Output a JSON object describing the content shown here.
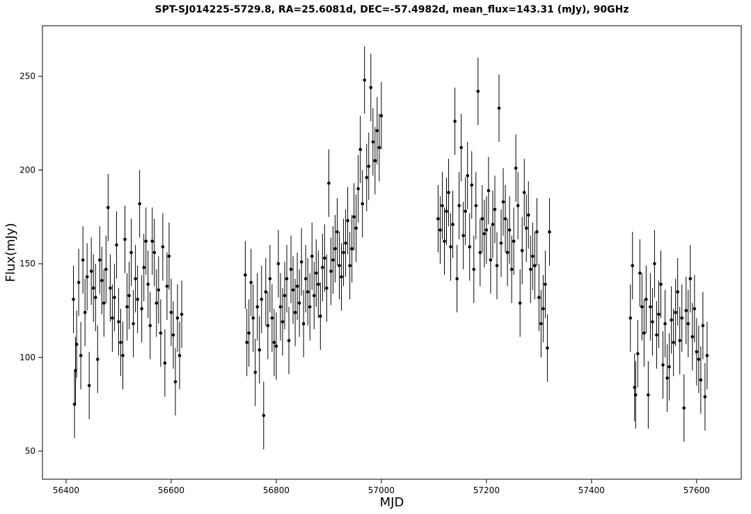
{
  "chart_data": {
    "type": "scatter",
    "title": "SPT-SJ014225-5729.8, RA=25.6081d, DEC=-57.4982d, mean_flux=143.31 (mJy), 90GHz",
    "xlabel": "MJD",
    "ylabel": "Flux(mJy)",
    "xlim": [
      56355,
      57685
    ],
    "ylim": [
      35,
      277
    ],
    "xticks": [
      56400,
      56600,
      56800,
      57000,
      57200,
      57400,
      57600
    ],
    "yticks": [
      50,
      100,
      150,
      200,
      250
    ],
    "xtick_labels": [
      "56400",
      "56600",
      "56800",
      "57000",
      "57200",
      "57400",
      "57600"
    ],
    "ytick_labels": [
      "50",
      "100",
      "150",
      "200",
      "250"
    ],
    "grid": false,
    "legend": "none",
    "error_bars": true,
    "series": [
      {
        "x": [
          56414,
          56416,
          56418,
          56420,
          56424,
          56428,
          56432,
          56436,
          56440,
          56444,
          56448,
          56452,
          56456,
          56460,
          56464,
          56468,
          56472,
          56476,
          56480,
          56484,
          56488,
          56492,
          56496,
          56500,
          56504,
          56508,
          56512,
          56516,
          56520,
          56524,
          56528,
          56532,
          56536,
          56540,
          56544,
          56548,
          56552,
          56556,
          56560,
          56564,
          56568,
          56572,
          56576,
          56580,
          56584,
          56588,
          56592,
          56596,
          56600,
          56604,
          56608,
          56612,
          56616,
          56620,
          56741,
          56744,
          56748,
          56752,
          56756,
          56760,
          56764,
          56768,
          56772,
          56776,
          56780,
          56784,
          56788,
          56792,
          56796,
          56800,
          56804,
          56808,
          56812,
          56816,
          56820,
          56824,
          56828,
          56832,
          56836,
          56840,
          56844,
          56848,
          56852,
          56856,
          56860,
          56864,
          56868,
          56872,
          56876,
          56880,
          56884,
          56888,
          56892,
          56896,
          56900,
          56904,
          56908,
          56912,
          56916,
          56920,
          56924,
          56928,
          56932,
          56936,
          56940,
          56944,
          56948,
          56952,
          56956,
          56960,
          56964,
          56968,
          56972,
          56976,
          56980,
          56984,
          56988,
          56992,
          56996,
          57000,
          57108,
          57112,
          57116,
          57120,
          57124,
          57128,
          57132,
          57136,
          57140,
          57144,
          57148,
          57152,
          57156,
          57160,
          57164,
          57168,
          57172,
          57176,
          57180,
          57184,
          57188,
          57192,
          57196,
          57200,
          57204,
          57208,
          57212,
          57216,
          57220,
          57224,
          57228,
          57232,
          57236,
          57240,
          57244,
          57248,
          57252,
          57256,
          57260,
          57264,
          57268,
          57272,
          57276,
          57280,
          57284,
          57288,
          57292,
          57296,
          57300,
          57304,
          57308,
          57312,
          57316,
          57320,
          57474,
          57478,
          57482,
          57484,
          57488,
          57492,
          57496,
          57500,
          57504,
          57508,
          57512,
          57516,
          57520,
          57524,
          57528,
          57532,
          57536,
          57540,
          57544,
          57548,
          57552,
          57556,
          57560,
          57564,
          57568,
          57572,
          57576,
          57580,
          57584,
          57588,
          57592,
          57596,
          57600,
          57604,
          57608,
          57612,
          57616,
          57620
        ],
        "y": [
          131,
          75,
          93,
          107,
          140,
          101,
          152,
          124,
          143,
          85,
          146,
          137,
          132,
          99,
          152,
          141,
          129,
          147,
          180,
          137,
          121,
          132,
          160,
          119,
          108,
          101,
          163,
          127,
          133,
          156,
          118,
          142,
          131,
          182,
          126,
          148,
          162,
          139,
          117,
          162,
          156,
          129,
          136,
          113,
          159,
          97,
          138,
          154,
          124,
          112,
          87,
          121,
          101,
          123,
          144,
          108,
          113,
          140,
          121,
          92,
          127,
          104,
          131,
          69,
          135,
          117,
          142,
          121,
          108,
          106,
          150,
          127,
          119,
          133,
          142,
          109,
          147,
          136,
          124,
          138,
          129,
          151,
          118,
          142,
          135,
          127,
          154,
          133,
          145,
          139,
          122,
          148,
          153,
          137,
          193,
          146,
          152,
          158,
          167,
          149,
          143,
          156,
          161,
          173,
          149,
          158,
          175,
          169,
          190,
          211,
          182,
          248,
          196,
          202,
          244,
          215,
          205,
          221,
          212,
          229,
          174,
          168,
          181,
          162,
          178,
          188,
          159,
          171,
          226,
          142,
          181,
          212,
          165,
          178,
          197,
          159,
          192,
          147,
          181,
          242,
          156,
          174,
          166,
          168,
          189,
          152,
          171,
          179,
          149,
          233,
          161,
          183,
          174,
          156,
          168,
          147,
          162,
          201,
          181,
          129,
          157,
          188,
          169,
          176,
          147,
          154,
          149,
          167,
          132,
          118,
          126,
          139,
          105,
          167,
          121,
          149,
          84,
          80,
          102,
          145,
          127,
          113,
          131,
          80,
          127,
          119,
          150,
          112,
          123,
          139,
          96,
          118,
          89,
          95,
          120,
          108,
          124,
          135,
          109,
          121,
          73,
          125,
          118,
          142,
          111,
          126,
          103,
          99,
          88,
          117,
          79,
          101
        ],
        "err": 18
      }
    ]
  }
}
